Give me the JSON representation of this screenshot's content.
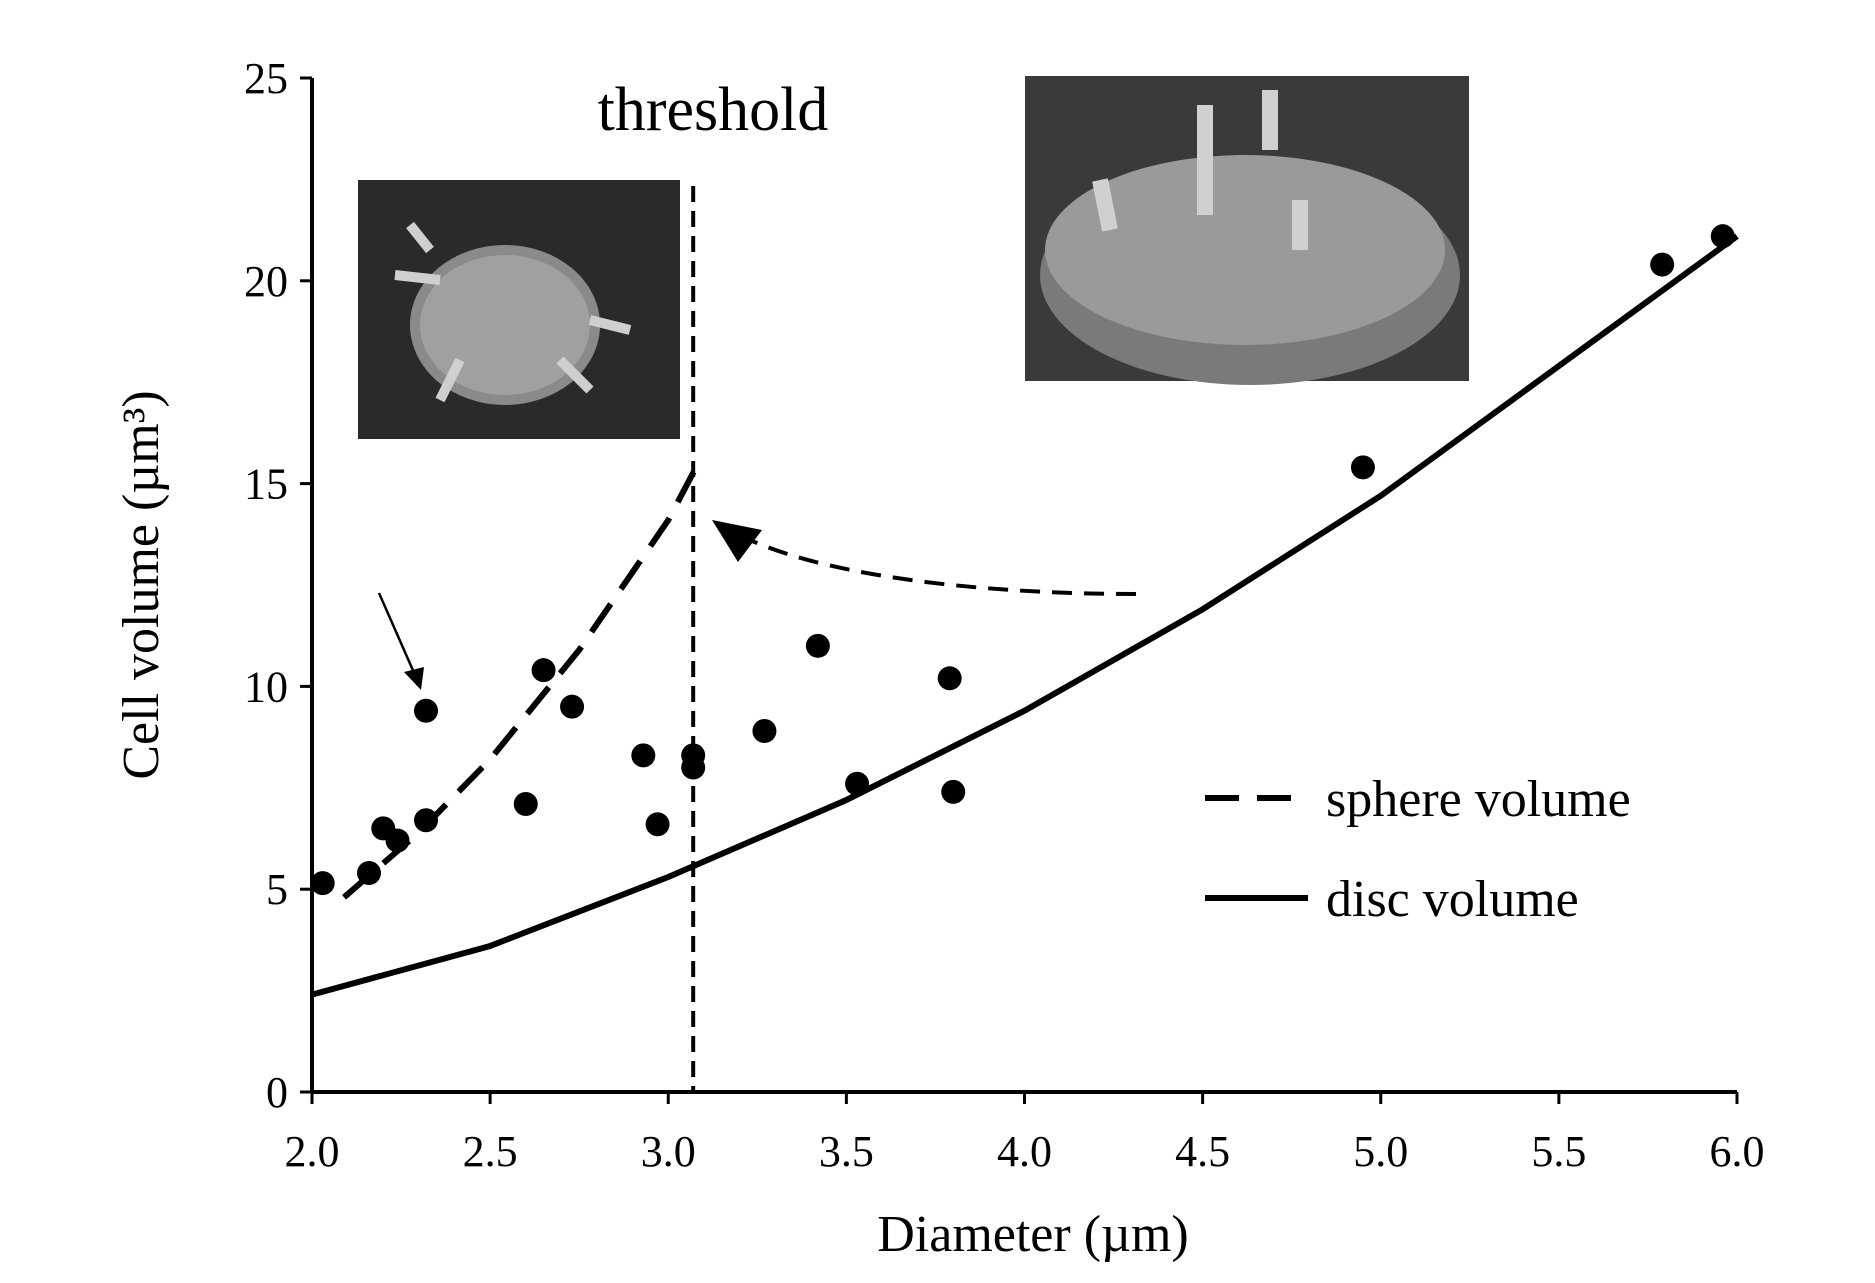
{
  "chart_data": {
    "type": "scatter",
    "xlabel": "Diameter (µm)",
    "ylabel": "Cell volume (µm³)",
    "annotation": "threshold",
    "threshold_x": 3.07,
    "xlim": [
      2,
      6
    ],
    "ylim": [
      0,
      25
    ],
    "xticks": [
      {
        "value": 2,
        "label": "2.0"
      },
      {
        "value": 2.5,
        "label": "2.5"
      },
      {
        "value": 3,
        "label": "3.0"
      },
      {
        "value": 3.5,
        "label": "3.5"
      },
      {
        "value": 4,
        "label": "4.0"
      },
      {
        "value": 4.5,
        "label": "4.5"
      },
      {
        "value": 5,
        "label": "5.0"
      },
      {
        "value": 5.5,
        "label": "5.5"
      },
      {
        "value": 6,
        "label": "6.0"
      }
    ],
    "yticks": [
      0,
      5,
      10,
      15,
      20,
      25
    ],
    "color": "#000000",
    "points": {
      "x": [
        2.03,
        2.16,
        2.2,
        2.24,
        2.32,
        2.32,
        2.6,
        2.65,
        2.73,
        2.93,
        2.97,
        3.07,
        3.07,
        3.27,
        3.42,
        3.53,
        3.79,
        3.8,
        4.95,
        5.79,
        5.96
      ],
      "values": [
        5.15,
        5.4,
        6.5,
        6.2,
        6.7,
        9.4,
        7.1,
        10.4,
        9.5,
        8.3,
        6.6,
        8.3,
        8.0,
        8.9,
        11.0,
        7.6,
        10.2,
        7.4,
        15.4,
        20.4,
        21.1
      ]
    },
    "series": [
      {
        "name": "sphere volume",
        "dashed": true,
        "x": [
          2.09,
          2.3,
          2.5,
          2.75,
          3.0,
          3.09
        ],
        "values": [
          4.8,
          6.4,
          8.2,
          10.9,
          14.1,
          15.6
        ]
      },
      {
        "name": "disc volume",
        "dashed": false,
        "x": [
          2.0,
          2.5,
          3.0,
          3.5,
          4.0,
          4.5,
          5.0,
          5.5,
          6.0
        ],
        "values": [
          2.4,
          3.6,
          5.3,
          7.2,
          9.4,
          11.9,
          14.7,
          17.9,
          21.1
        ]
      }
    ]
  }
}
